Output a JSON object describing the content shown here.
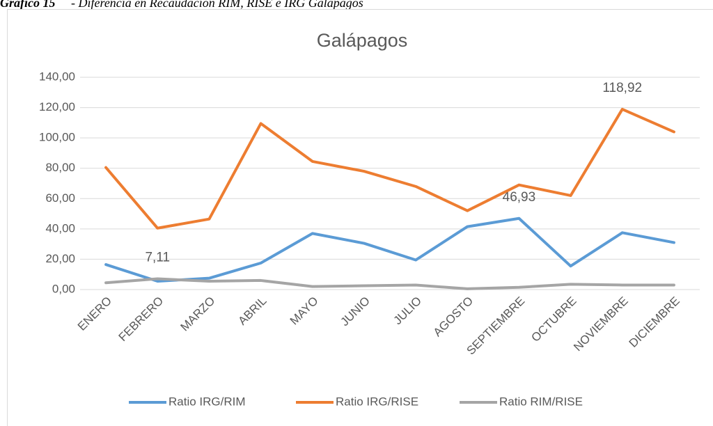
{
  "caption": {
    "label": "Gráfico 15",
    "text": "- Diferencia en Recaudación RIM, RISE e IRG Galápagos"
  },
  "chart_data": {
    "type": "line",
    "title": "Galápagos",
    "categories": [
      "ENERO",
      "FEBRERO",
      "MARZO",
      "ABRIL",
      "MAYO",
      "JUNIO",
      "JULIO",
      "AGOSTO",
      "SEPTIEMBRE",
      "OCTUBRE",
      "NOVIEMBRE",
      "DICIEMBRE"
    ],
    "series": [
      {
        "name": "Ratio IRG/RIM",
        "color": "#5b9bd5",
        "values": [
          16.5,
          5.5,
          7.5,
          17.5,
          37,
          30.5,
          19.5,
          41.5,
          46.93,
          15.5,
          37.5,
          31
        ],
        "value_labels": [
          null,
          null,
          null,
          null,
          null,
          null,
          null,
          null,
          "46,93",
          null,
          null,
          null
        ]
      },
      {
        "name": "Ratio IRG/RISE",
        "color": "#ed7d31",
        "values": [
          80.5,
          40.5,
          46.5,
          109.5,
          84.5,
          78,
          68,
          52,
          69,
          62,
          118.92,
          104
        ],
        "value_labels": [
          null,
          null,
          null,
          null,
          null,
          null,
          null,
          null,
          null,
          null,
          "118,92",
          null
        ]
      },
      {
        "name": "Ratio RIM/RISE",
        "color": "#a5a5a5",
        "values": [
          4.5,
          7.11,
          5.5,
          6,
          2,
          2.5,
          3,
          0.5,
          1.5,
          3.5,
          3,
          3
        ],
        "value_labels": [
          null,
          "7,11",
          null,
          null,
          null,
          null,
          null,
          null,
          null,
          null,
          null,
          null
        ]
      }
    ],
    "ylim": [
      0,
      140
    ],
    "yticks": [
      {
        "value": 0,
        "label": "0,00"
      },
      {
        "value": 20,
        "label": "20,00"
      },
      {
        "value": 40,
        "label": "40,00"
      },
      {
        "value": 60,
        "label": "60,00"
      },
      {
        "value": 80,
        "label": "80,00"
      },
      {
        "value": 100,
        "label": "100,00"
      },
      {
        "value": 120,
        "label": "120,00"
      },
      {
        "value": 140,
        "label": "140,00"
      }
    ],
    "grid": true,
    "legend": "bottom"
  }
}
